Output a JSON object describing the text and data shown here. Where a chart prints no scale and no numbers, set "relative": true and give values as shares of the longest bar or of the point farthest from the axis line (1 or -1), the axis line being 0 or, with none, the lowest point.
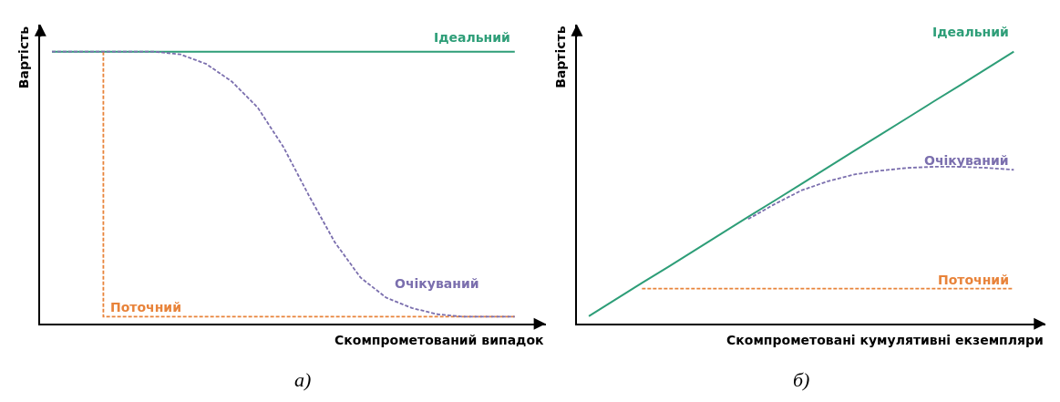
{
  "chart_data": [
    {
      "type": "line",
      "relative": true,
      "xlabel": "Скомпрометований випадок",
      "ylabel": "Вартість",
      "annotations": [
        "а)"
      ],
      "legend": false,
      "marker": "none",
      "categories": [
        null,
        null,
        null,
        null,
        null,
        null,
        null,
        null,
        null,
        null,
        null,
        null,
        null,
        null,
        null,
        null,
        null,
        null,
        null
      ],
      "series": [
        {
          "name": "Ідеальний",
          "color": "#2e9e78",
          "line_style": "solid",
          "values": [
            1,
            1,
            1,
            1,
            1,
            1,
            1,
            1,
            1,
            1,
            1,
            1,
            1,
            1,
            1,
            1,
            1,
            1,
            1
          ]
        },
        {
          "name": "Поточний",
          "type": "step",
          "color": "#e8833a",
          "line_style": "dashed",
          "values": [
            null,
            null,
            1,
            0.026,
            0.026,
            0.026,
            0.026,
            0.026,
            0.026,
            0.026,
            0.026,
            0.026,
            0.026,
            0.026,
            0.026,
            0.026,
            0.026,
            0.026,
            0.026
          ]
        },
        {
          "name": "Очікуваний",
          "color": "#7b6fae",
          "line_style": "dashed",
          "values": [
            1,
            1,
            1,
            1,
            1,
            0.99,
            0.955,
            0.89,
            0.795,
            0.65,
            0.47,
            0.3,
            0.17,
            0.096,
            0.058,
            0.035,
            0.026,
            0.026,
            0.026
          ]
        }
      ]
    },
    {
      "type": "line",
      "relative": true,
      "xlabel": "Скомпрометовані кумулятивні екземпляри",
      "ylabel": "Вартість",
      "annotations": [
        "б)"
      ],
      "legend": false,
      "marker": "none",
      "categories": [
        null,
        null,
        null,
        null,
        null,
        null,
        null,
        null,
        null,
        null,
        null,
        null,
        null,
        null,
        null,
        null,
        null
      ],
      "series": [
        {
          "name": "Ідеальний",
          "color": "#2e9e78",
          "line_style": "solid",
          "values": [
            0.028,
            0.089,
            0.15,
            0.21,
            0.271,
            0.332,
            0.393,
            0.453,
            0.514,
            0.575,
            0.636,
            0.696,
            0.757,
            0.818,
            0.878,
            0.939,
            1
          ]
        },
        {
          "name": "Очікуваний",
          "color": "#7b6fae",
          "line_style": "dashed",
          "values": [
            null,
            null,
            null,
            null,
            null,
            null,
            0.385,
            0.44,
            0.49,
            0.524,
            0.549,
            0.563,
            0.573,
            0.577,
            0.577,
            0.573,
            0.566
          ]
        },
        {
          "name": "Поточний",
          "color": "#e8833a",
          "line_style": "dashed",
          "values": [
            null,
            null,
            0.129,
            0.129,
            0.129,
            0.129,
            0.129,
            0.129,
            0.129,
            0.129,
            0.129,
            0.129,
            0.129,
            0.129,
            0.129,
            0.129,
            0.129
          ]
        }
      ]
    }
  ]
}
